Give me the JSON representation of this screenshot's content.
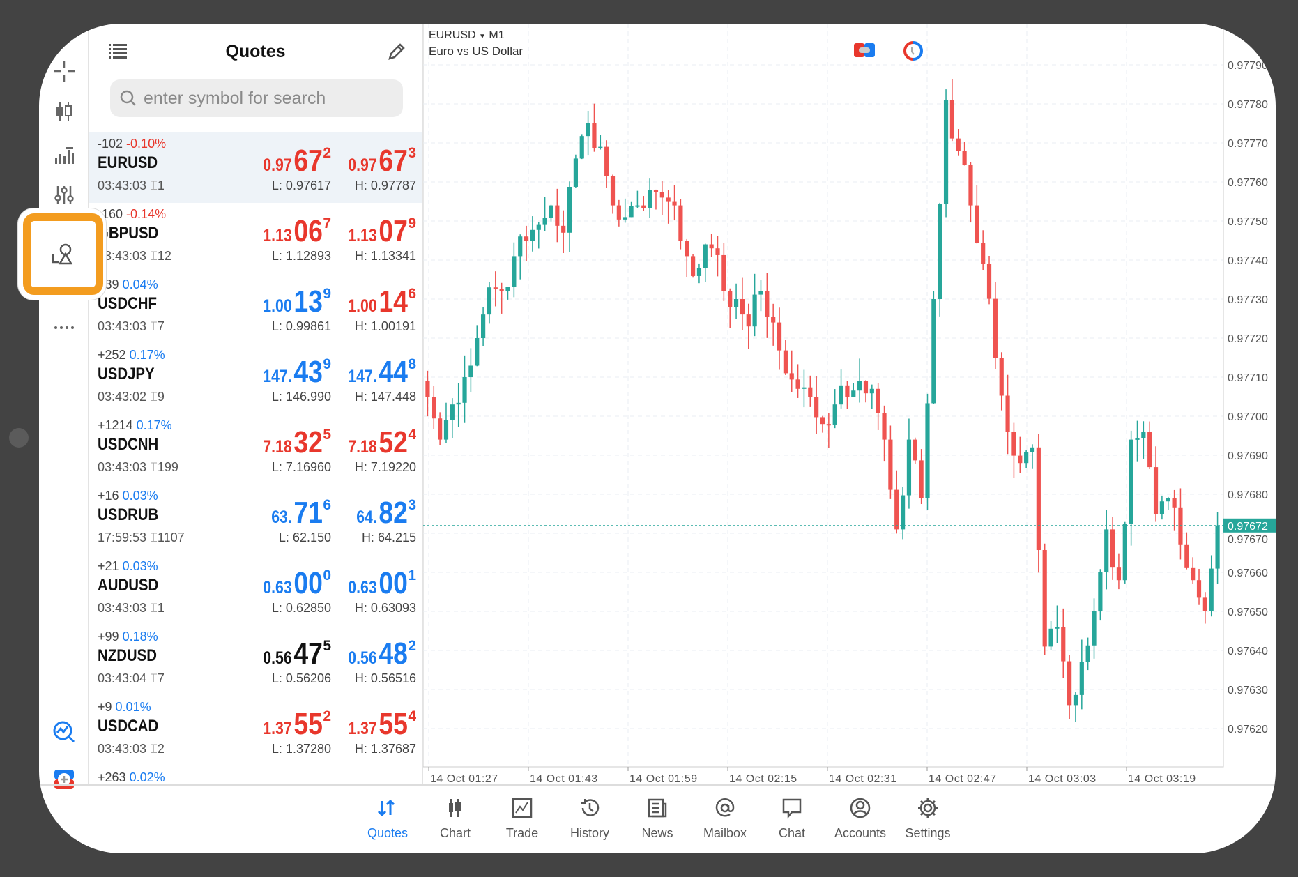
{
  "quotes_panel": {
    "title": "Quotes",
    "search_placeholder": "enter symbol for search",
    "rows": [
      {
        "change": "-102",
        "pct": "-0.10%",
        "dir": "down",
        "symbol": "EURUSD",
        "time": "03:43:03",
        "spread": "1",
        "bid": {
          "pre": "0.97",
          "big": "67",
          "sup": "2",
          "color": "#e8372c"
        },
        "ask": {
          "pre": "0.97",
          "big": "67",
          "sup": "3",
          "color": "#e8372c"
        },
        "low": "L: 0.97617",
        "high": "H: 0.97787",
        "selected": true
      },
      {
        "change": "-160",
        "pct": "-0.14%",
        "dir": "down",
        "symbol": "GBPUSD",
        "time": "03:43:03",
        "spread": "12",
        "bid": {
          "pre": "1.13",
          "big": "06",
          "sup": "7",
          "color": "#e8372c"
        },
        "ask": {
          "pre": "1.13",
          "big": "07",
          "sup": "9",
          "color": "#e8372c"
        },
        "low": "L: 1.12893",
        "high": "H: 1.13341"
      },
      {
        "change": "+39",
        "pct": "0.04%",
        "dir": "up",
        "symbol": "USDCHF",
        "time": "03:43:03",
        "spread": "7",
        "bid": {
          "pre": "1.00",
          "big": "13",
          "sup": "9",
          "color": "#1a7cf0"
        },
        "ask": {
          "pre": "1.00",
          "big": "14",
          "sup": "6",
          "color": "#e8372c"
        },
        "low": "L: 0.99861",
        "high": "H: 1.00191"
      },
      {
        "change": "+252",
        "pct": "0.17%",
        "dir": "up",
        "symbol": "USDJPY",
        "time": "03:43:02",
        "spread": "9",
        "bid": {
          "pre": "147.",
          "big": "43",
          "sup": "9",
          "color": "#1a7cf0"
        },
        "ask": {
          "pre": "147.",
          "big": "44",
          "sup": "8",
          "color": "#1a7cf0"
        },
        "low": "L: 146.990",
        "high": "H: 147.448"
      },
      {
        "change": "+1214",
        "pct": "0.17%",
        "dir": "up",
        "symbol": "USDCNH",
        "time": "03:43:03",
        "spread": "199",
        "bid": {
          "pre": "7.18",
          "big": "32",
          "sup": "5",
          "color": "#e8372c"
        },
        "ask": {
          "pre": "7.18",
          "big": "52",
          "sup": "4",
          "color": "#e8372c"
        },
        "low": "L: 7.16960",
        "high": "H: 7.19220"
      },
      {
        "change": "+16",
        "pct": "0.03%",
        "dir": "up",
        "symbol": "USDRUB",
        "time": "17:59:53",
        "spread": "1107",
        "bid": {
          "pre": "63.",
          "big": "71",
          "sup": "6",
          "color": "#1a7cf0"
        },
        "ask": {
          "pre": "64.",
          "big": "82",
          "sup": "3",
          "color": "#1a7cf0"
        },
        "low": "L: 62.150",
        "high": "H: 64.215"
      },
      {
        "change": "+21",
        "pct": "0.03%",
        "dir": "up",
        "symbol": "AUDUSD",
        "time": "03:43:03",
        "spread": "1",
        "bid": {
          "pre": "0.63",
          "big": "00",
          "sup": "0",
          "color": "#1a7cf0"
        },
        "ask": {
          "pre": "0.63",
          "big": "00",
          "sup": "1",
          "color": "#1a7cf0"
        },
        "low": "L: 0.62850",
        "high": "H: 0.63093"
      },
      {
        "change": "+99",
        "pct": "0.18%",
        "dir": "up",
        "symbol": "NZDUSD",
        "time": "03:43:04",
        "spread": "7",
        "bid": {
          "pre": "0.56",
          "big": "47",
          "sup": "5",
          "color": "#111111"
        },
        "ask": {
          "pre": "0.56",
          "big": "48",
          "sup": "2",
          "color": "#1a7cf0"
        },
        "low": "L: 0.56206",
        "high": "H: 0.56516"
      },
      {
        "change": "+9",
        "pct": "0.01%",
        "dir": "up",
        "symbol": "USDCAD",
        "time": "03:43:03",
        "spread": "2",
        "bid": {
          "pre": "1.37",
          "big": "55",
          "sup": "2",
          "color": "#e8372c"
        },
        "ask": {
          "pre": "1.37",
          "big": "55",
          "sup": "4",
          "color": "#e8372c"
        },
        "low": "L: 1.37280",
        "high": "H: 1.37687"
      },
      {
        "change": "+263",
        "pct": "0.02%",
        "dir": "up",
        "symbol": "",
        "time": "",
        "spread": "",
        "bid": {
          "pre": "",
          "big": "",
          "sup": "",
          "color": "#111"
        },
        "ask": {
          "pre": "",
          "big": "",
          "sup": "",
          "color": "#111"
        },
        "low": "",
        "high": ""
      }
    ]
  },
  "chart": {
    "symbol": "EURUSD",
    "timeframe": "M1",
    "description": "Euro vs US Dollar",
    "current_price": "0.97672",
    "current_value": 0.97672,
    "y_labels": [
      "0.97790",
      "0.97780",
      "0.97770",
      "0.97760",
      "0.97750",
      "0.97740",
      "0.97730",
      "0.97720",
      "0.97710",
      "0.97700",
      "0.97690",
      "0.97680",
      "0.97670",
      "0.97660",
      "0.97650",
      "0.97640",
      "0.97630",
      "0.97620"
    ],
    "x_labels": [
      "14 Oct 01:27",
      "14 Oct 01:43",
      "14 Oct 01:59",
      "14 Oct 02:15",
      "14 Oct 02:31",
      "14 Oct 02:47",
      "14 Oct 03:03",
      "14 Oct 03:19"
    ],
    "closes": [
      0.97705,
      0.97694,
      0.97703,
      0.9771,
      0.9772,
      0.97733,
      0.97732,
      0.97741,
      0.97745,
      0.97749,
      0.97754,
      0.97747,
      0.97766,
      0.97775,
      0.97769,
      0.97754,
      0.97751,
      0.97754,
      0.97758,
      0.97756,
      0.97754,
      0.97741,
      0.97738,
      0.97743,
      0.97732,
      0.9773,
      0.97723,
      0.97732,
      0.97724,
      0.97711,
      0.97707,
      0.97705,
      0.97698,
      0.97703,
      0.97705,
      0.97709,
      0.97707,
      0.97694,
      0.97671,
      0.97694,
      0.97679,
      0.9773,
      0.97781,
      0.97768,
      0.97754,
      0.97739,
      0.97715,
      0.97696,
      0.97688,
      0.97692,
      0.97641,
      0.97646,
      0.97626,
      0.97637,
      0.9765,
      0.97671,
      0.97658,
      0.97694,
      0.97696,
      0.97675,
      0.97679,
      0.97667,
      0.97658,
      0.9765,
      0.97672
    ],
    "up_color": "#26a69a",
    "down_color": "#ef5350"
  },
  "nav": [
    {
      "label": "Quotes",
      "icon": "quotes-icon",
      "active": true
    },
    {
      "label": "Chart",
      "icon": "chart-icon"
    },
    {
      "label": "Trade",
      "icon": "trade-icon"
    },
    {
      "label": "History",
      "icon": "history-icon"
    },
    {
      "label": "News",
      "icon": "news-icon"
    },
    {
      "label": "Mailbox",
      "icon": "mailbox-icon"
    },
    {
      "label": "Chat",
      "icon": "chat-icon"
    },
    {
      "label": "Accounts",
      "icon": "accounts-icon"
    },
    {
      "label": "Settings",
      "icon": "settings-icon"
    }
  ]
}
